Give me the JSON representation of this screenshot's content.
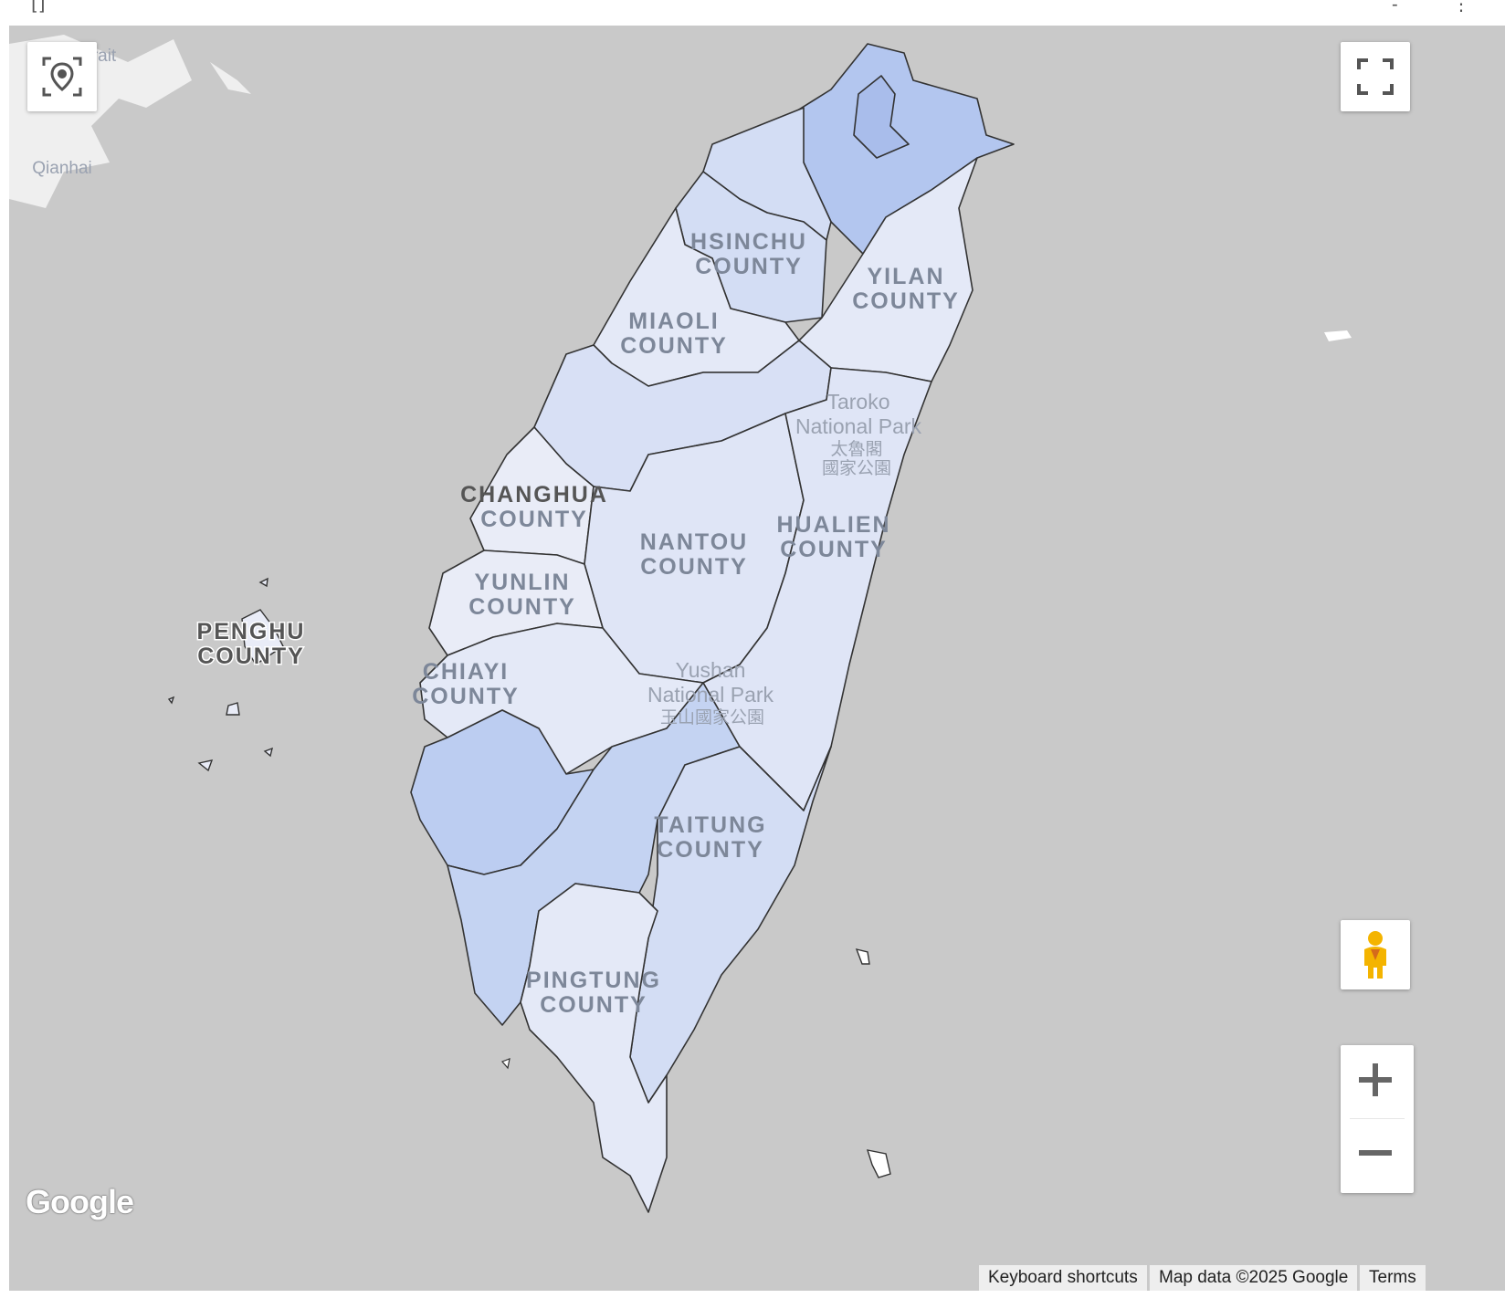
{
  "map": {
    "background_color": "#c9c9c9",
    "land_color": "#efefef",
    "border_color": "#333333",
    "label_color": "#7d8799",
    "region_labels": [
      {
        "line1": "HSINCHU",
        "line2": "COUNTY"
      },
      {
        "line1": "YILAN",
        "line2": "COUNTY"
      },
      {
        "line1": "MIAOLI",
        "line2": "COUNTY"
      },
      {
        "line1": "CHANGHUA",
        "line2": "COUNTY"
      },
      {
        "line1": "NANTOU",
        "line2": "COUNTY"
      },
      {
        "line1": "HUALIEN",
        "line2": "COUNTY"
      },
      {
        "line1": "YUNLIN",
        "line2": "COUNTY"
      },
      {
        "line1": "PENGHU",
        "line2": "COUNTY"
      },
      {
        "line1": "CHIAYI",
        "line2": "COUNTY"
      },
      {
        "line1": "TAITUNG",
        "line2": "COUNTY"
      },
      {
        "line1": "PINGTUNG",
        "line2": "COUNTY"
      }
    ],
    "poi_labels": [
      {
        "line1": "Taroko",
        "line2": "National Park",
        "line3": "太魯閣",
        "line4": "國家公園"
      },
      {
        "line1": "Yushan",
        "line2": "National Park",
        "line3": "玉山國家公園"
      }
    ],
    "minor_labels": [
      "Qianhai",
      "N…   rait"
    ]
  },
  "controls": {
    "location_icon": "location-target-icon",
    "fullscreen_icon": "fullscreen-icon",
    "pegman_icon": "pegman-icon",
    "zoom_in_icon": "plus-icon",
    "zoom_out_icon": "minus-icon"
  },
  "attribution": {
    "logo": "Google",
    "keyboard_shortcuts": "Keyboard shortcuts",
    "map_data": "Map data ©2025 Google",
    "terms": "Terms"
  },
  "colors": {
    "choropleth_light": "#e4e9f7",
    "choropleth_mid": "#d3ddf4",
    "choropleth_dark": "#b3c6ef",
    "pegman": "#f4b400"
  }
}
